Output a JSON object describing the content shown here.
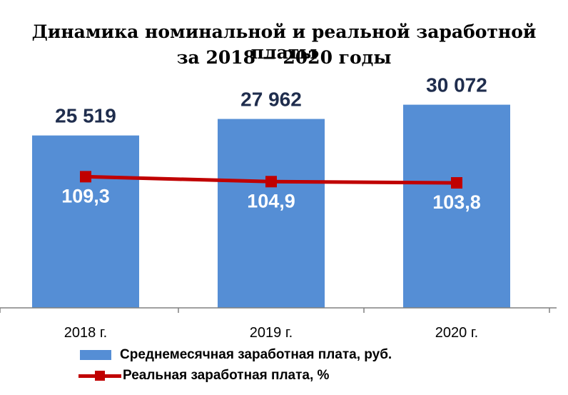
{
  "title": {
    "line1": "Динамика номинальной и реальной заработной платы",
    "line2": "за 2018 − 2020 годы"
  },
  "colors": {
    "bar": "#558ed5",
    "line": "#c00000",
    "bar_label": "#1f2d4d",
    "line_label": "#ffffff"
  },
  "chart_data": {
    "type": "bar",
    "categories": [
      "2018 г.",
      "2019 г.",
      "2020 г."
    ],
    "series": [
      {
        "name": "Среднемесячная заработная  плата, руб.",
        "type": "bar",
        "values": [
          25519,
          27962,
          30072
        ],
        "labels": [
          "25 519",
          "27 962",
          "30 072"
        ]
      },
      {
        "name": "Реальная заработная  плата, %",
        "type": "line",
        "values": [
          109.3,
          104.9,
          103.8
        ],
        "labels": [
          "109,3",
          "104,9",
          "103,8"
        ]
      }
    ],
    "legend": "bottom",
    "grid": false
  }
}
